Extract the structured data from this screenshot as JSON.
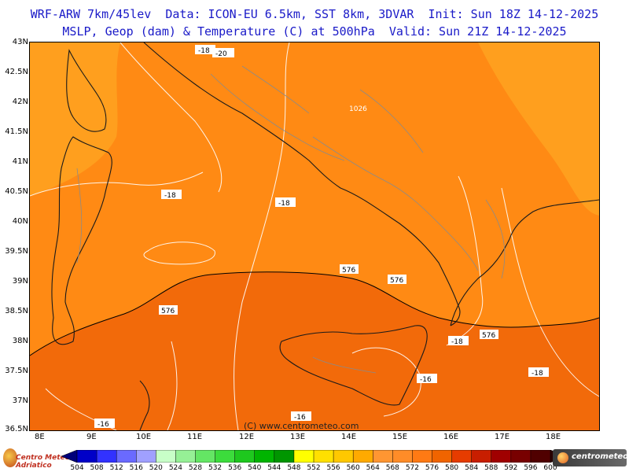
{
  "title_line1": "WRF-ARW 7km/45lev  Data: ICON-EU 6.5km, SST 8km, 3DVAR  Init: Sun 18Z 14-12-2025",
  "title_line2": "MSLP, Geop (dam) & Temperature (C) at 500hPa  Valid: Sun 21Z 14-12-2025",
  "copyright": "(C) www.centrometeo.com",
  "logo_left_text": "Centro Meteo Adriatico",
  "logo_right_text": "centrometeo",
  "lat_labels": [
    "43N",
    "42.5N",
    "42N",
    "41.5N",
    "41N",
    "40.5N",
    "40N",
    "39.5N",
    "39N",
    "38.5N",
    "38N",
    "37.5N",
    "37N",
    "36.5N"
  ],
  "lon_labels": [
    "8E",
    "9E",
    "10E",
    "11E",
    "12E",
    "13E",
    "14E",
    "15E",
    "16E",
    "17E",
    "18E"
  ],
  "contour_labels": {
    "temp": [
      "-20",
      "-18",
      "-18",
      "-18",
      "-16",
      "-16",
      "-18",
      "-16",
      "-18"
    ],
    "geop": [
      "576",
      "576",
      "576",
      "576"
    ],
    "pressure": [
      "1026"
    ]
  },
  "colorbar": {
    "values": [
      "504",
      "508",
      "512",
      "516",
      "520",
      "524",
      "528",
      "532",
      "536",
      "540",
      "544",
      "548",
      "552",
      "556",
      "560",
      "564",
      "568",
      "572",
      "576",
      "580",
      "584",
      "588",
      "592",
      "596",
      "600"
    ],
    "colors": [
      "#00007a",
      "#0000c8",
      "#3232ff",
      "#6a6aff",
      "#a0a0ff",
      "#c8ffc8",
      "#96f096",
      "#64e664",
      "#3cdc3c",
      "#1ec81e",
      "#00b400",
      "#009600",
      "#ffff00",
      "#ffe000",
      "#ffc800",
      "#ffaa00",
      "#ff9632",
      "#ff8c28",
      "#ff7a14",
      "#f06400",
      "#e63c00",
      "#c81e00",
      "#a00000",
      "#780000",
      "#500000",
      "#2a0000"
    ]
  },
  "field_colors": {
    "light": "#ff9f1e",
    "mid": "#ff8a14",
    "dark": "#f26a0a"
  }
}
